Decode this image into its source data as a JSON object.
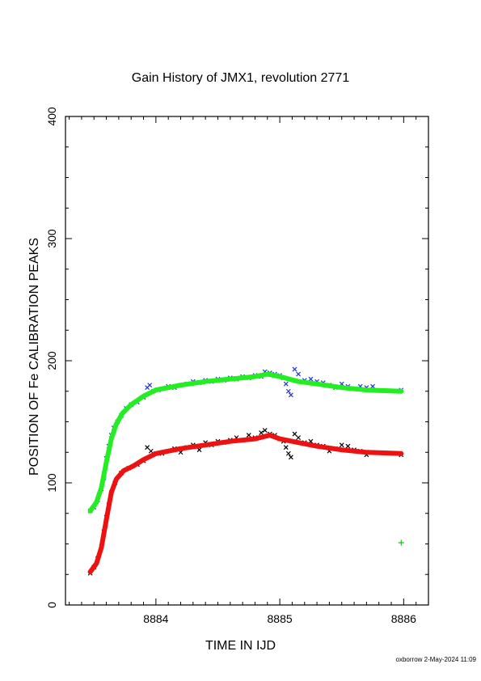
{
  "title": "Gain History of JMX1, revolution 2771",
  "footer": "oxborrow  2-May-2024 11:09",
  "colors": {
    "upper_points": "#2233dd",
    "upper_fit": "#22ee22",
    "lower_points": "#000000",
    "lower_fit": "#ee1111",
    "outlier": "#22bb22",
    "axis": "#000000"
  },
  "chart_data": {
    "type": "scatter",
    "title": "Gain History of JMX1, revolution 2771",
    "xlabel": "TIME IN IJD",
    "ylabel": "POSITION OF Fe CALIBRATION PEAKS",
    "xlim": [
      8883.27,
      8886.2
    ],
    "ylim": [
      0,
      400
    ],
    "x_ticks": [
      8884,
      8885,
      8886
    ],
    "x_tick_labels": [
      "8884",
      "8885",
      "8886"
    ],
    "y_ticks": [
      0,
      100,
      200,
      300,
      400
    ],
    "y_tick_labels": [
      "0",
      "100",
      "200",
      "300",
      "400"
    ],
    "grid": false,
    "legend": "none",
    "series": [
      {
        "marker": "x",
        "color_key": "upper_points",
        "points": [
          [
            8883.47,
            77
          ],
          [
            8883.5,
            80
          ],
          [
            8883.53,
            86
          ],
          [
            8883.56,
            95
          ],
          [
            8883.58,
            104
          ],
          [
            8883.6,
            120
          ],
          [
            8883.62,
            130
          ],
          [
            8883.64,
            139
          ],
          [
            8883.66,
            145
          ],
          [
            8883.69,
            150
          ],
          [
            8883.72,
            155
          ],
          [
            8883.76,
            161
          ],
          [
            8883.8,
            164
          ],
          [
            8883.85,
            166
          ],
          [
            8883.9,
            170
          ],
          [
            8883.93,
            178
          ],
          [
            8883.95,
            180
          ],
          [
            8883.98,
            175
          ],
          [
            8884.02,
            176
          ],
          [
            8884.05,
            177
          ],
          [
            8884.1,
            179
          ],
          [
            8884.15,
            178
          ],
          [
            8884.2,
            180
          ],
          [
            8884.25,
            181
          ],
          [
            8884.3,
            183
          ],
          [
            8884.35,
            182
          ],
          [
            8884.4,
            184
          ],
          [
            8884.45,
            183
          ],
          [
            8884.5,
            185
          ],
          [
            8884.55,
            184
          ],
          [
            8884.6,
            186
          ],
          [
            8884.65,
            185
          ],
          [
            8884.7,
            187
          ],
          [
            8884.75,
            186
          ],
          [
            8884.8,
            188
          ],
          [
            8884.85,
            187
          ],
          [
            8884.88,
            191
          ],
          [
            8884.92,
            190
          ],
          [
            8884.96,
            189
          ],
          [
            8885.0,
            188
          ],
          [
            8885.03,
            186
          ],
          [
            8885.05,
            181
          ],
          [
            8885.07,
            175
          ],
          [
            8885.09,
            172
          ],
          [
            8885.12,
            193
          ],
          [
            8885.15,
            189
          ],
          [
            8885.2,
            184
          ],
          [
            8885.25,
            185
          ],
          [
            8885.3,
            183
          ],
          [
            8885.35,
            182
          ],
          [
            8885.4,
            180
          ],
          [
            8885.45,
            178
          ],
          [
            8885.5,
            181
          ],
          [
            8885.55,
            179
          ],
          [
            8885.6,
            177
          ],
          [
            8885.65,
            179
          ],
          [
            8885.7,
            178
          ],
          [
            8885.75,
            179
          ],
          [
            8885.98,
            176
          ]
        ]
      },
      {
        "marker": "line",
        "color_key": "upper_fit",
        "points": [
          [
            8883.47,
            77
          ],
          [
            8883.52,
            84
          ],
          [
            8883.56,
            96
          ],
          [
            8883.6,
            117
          ],
          [
            8883.64,
            136
          ],
          [
            8883.68,
            148
          ],
          [
            8883.73,
            157
          ],
          [
            8883.8,
            164
          ],
          [
            8883.9,
            171
          ],
          [
            8884.0,
            176
          ],
          [
            8884.2,
            180
          ],
          [
            8884.4,
            183
          ],
          [
            8884.6,
            185
          ],
          [
            8884.8,
            187
          ],
          [
            8884.9,
            189
          ],
          [
            8885.0,
            187
          ],
          [
            8885.15,
            183
          ],
          [
            8885.3,
            181
          ],
          [
            8885.5,
            178
          ],
          [
            8885.7,
            176
          ],
          [
            8885.98,
            175
          ]
        ]
      },
      {
        "marker": "x",
        "color_key": "lower_points",
        "points": [
          [
            8883.47,
            26
          ],
          [
            8883.5,
            31
          ],
          [
            8883.53,
            38
          ],
          [
            8883.56,
            48
          ],
          [
            8883.58,
            60
          ],
          [
            8883.6,
            72
          ],
          [
            8883.62,
            82
          ],
          [
            8883.64,
            92
          ],
          [
            8883.67,
            100
          ],
          [
            8883.72,
            108
          ],
          [
            8883.78,
            112
          ],
          [
            8883.85,
            115
          ],
          [
            8883.9,
            118
          ],
          [
            8883.93,
            129
          ],
          [
            8883.96,
            126
          ],
          [
            8884.0,
            124
          ],
          [
            8884.05,
            124
          ],
          [
            8884.1,
            126
          ],
          [
            8884.15,
            128
          ],
          [
            8884.2,
            125
          ],
          [
            8884.25,
            129
          ],
          [
            8884.3,
            131
          ],
          [
            8884.35,
            127
          ],
          [
            8884.4,
            133
          ],
          [
            8884.45,
            131
          ],
          [
            8884.5,
            134
          ],
          [
            8884.55,
            133
          ],
          [
            8884.6,
            135
          ],
          [
            8884.65,
            137
          ],
          [
            8884.7,
            135
          ],
          [
            8884.75,
            139
          ],
          [
            8884.8,
            137
          ],
          [
            8884.85,
            141
          ],
          [
            8884.88,
            143
          ],
          [
            8884.92,
            140
          ],
          [
            8884.96,
            139
          ],
          [
            8885.0,
            136
          ],
          [
            8885.03,
            134
          ],
          [
            8885.05,
            129
          ],
          [
            8885.07,
            124
          ],
          [
            8885.09,
            121
          ],
          [
            8885.12,
            140
          ],
          [
            8885.15,
            137
          ],
          [
            8885.2,
            133
          ],
          [
            8885.25,
            134
          ],
          [
            8885.3,
            131
          ],
          [
            8885.35,
            130
          ],
          [
            8885.4,
            126
          ],
          [
            8885.45,
            128
          ],
          [
            8885.5,
            131
          ],
          [
            8885.55,
            130
          ],
          [
            8885.6,
            127
          ],
          [
            8885.65,
            126
          ],
          [
            8885.7,
            123
          ],
          [
            8885.75,
            125
          ],
          [
            8885.98,
            123
          ]
        ]
      },
      {
        "marker": "line",
        "color_key": "lower_fit",
        "points": [
          [
            8883.47,
            27
          ],
          [
            8883.52,
            34
          ],
          [
            8883.56,
            47
          ],
          [
            8883.6,
            70
          ],
          [
            8883.64,
            92
          ],
          [
            8883.68,
            103
          ],
          [
            8883.74,
            110
          ],
          [
            8883.82,
            114
          ],
          [
            8883.9,
            119
          ],
          [
            8884.0,
            124
          ],
          [
            8884.2,
            128
          ],
          [
            8884.4,
            131
          ],
          [
            8884.6,
            134
          ],
          [
            8884.8,
            136
          ],
          [
            8884.92,
            139
          ],
          [
            8885.0,
            136
          ],
          [
            8885.15,
            133
          ],
          [
            8885.3,
            130
          ],
          [
            8885.5,
            127
          ],
          [
            8885.7,
            125
          ],
          [
            8885.98,
            124
          ]
        ]
      },
      {
        "marker": "+",
        "color_key": "outlier",
        "points": [
          [
            8885.98,
            51
          ]
        ]
      }
    ]
  }
}
